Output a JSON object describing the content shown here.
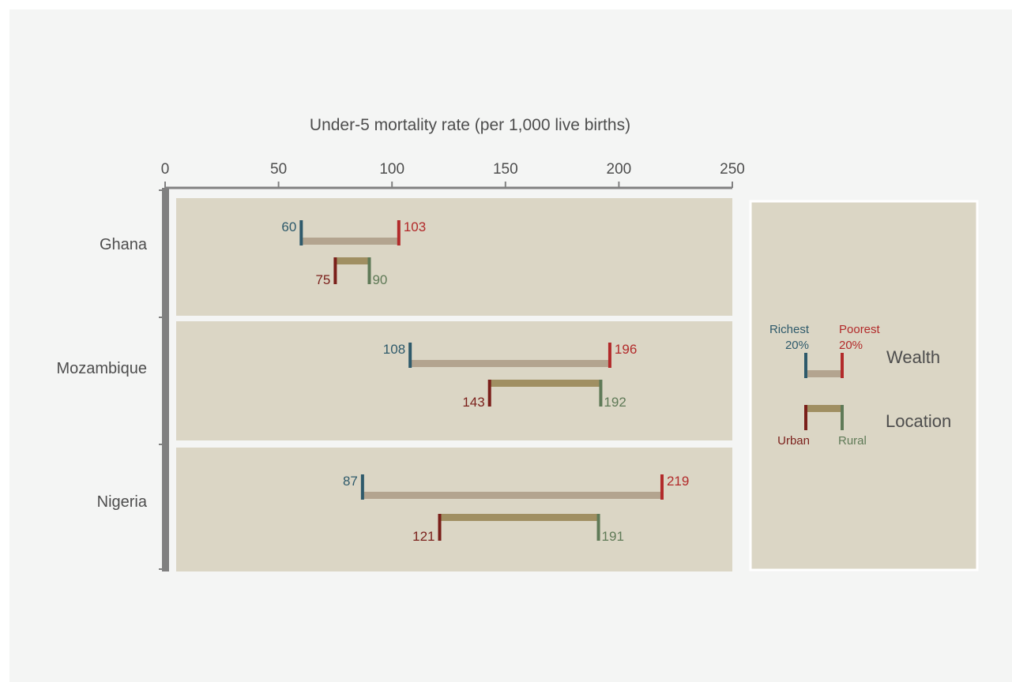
{
  "chart_data": {
    "type": "dumbbell",
    "xlabel": "Under-5 mortality rate (per 1,000 live births)",
    "xlim": [
      0,
      250
    ],
    "xticks": [
      0,
      50,
      100,
      150,
      200,
      250
    ],
    "colors": {
      "richest": "#2e5a6b",
      "poorest": "#b22a2a",
      "urban": "#7a1f1a",
      "rural": "#5f7a57",
      "wealth_bar": "#b3a48f",
      "location_bar": "#a08f62",
      "panel_bg": "#dbd6c5",
      "page_bg": "#f4f5f4",
      "axis": "#808080"
    },
    "categories": [
      "Ghana",
      "Mozambique",
      "Nigeria"
    ],
    "series": [
      {
        "name": "Wealth",
        "low_name": "Richest 20%",
        "high_name": "Poorest 20%",
        "low": [
          60,
          108,
          87
        ],
        "high": [
          103,
          196,
          219
        ]
      },
      {
        "name": "Location",
        "low_name": "Urban",
        "high_name": "Rural",
        "low": [
          75,
          143,
          121
        ],
        "high": [
          90,
          192,
          191
        ]
      }
    ],
    "legend": {
      "wealth_label": "Wealth",
      "location_label": "Location",
      "richest_line1": "Richest",
      "richest_line2": "20%",
      "poorest_line1": "Poorest",
      "poorest_line2": "20%",
      "urban_label": "Urban",
      "rural_label": "Rural"
    }
  }
}
